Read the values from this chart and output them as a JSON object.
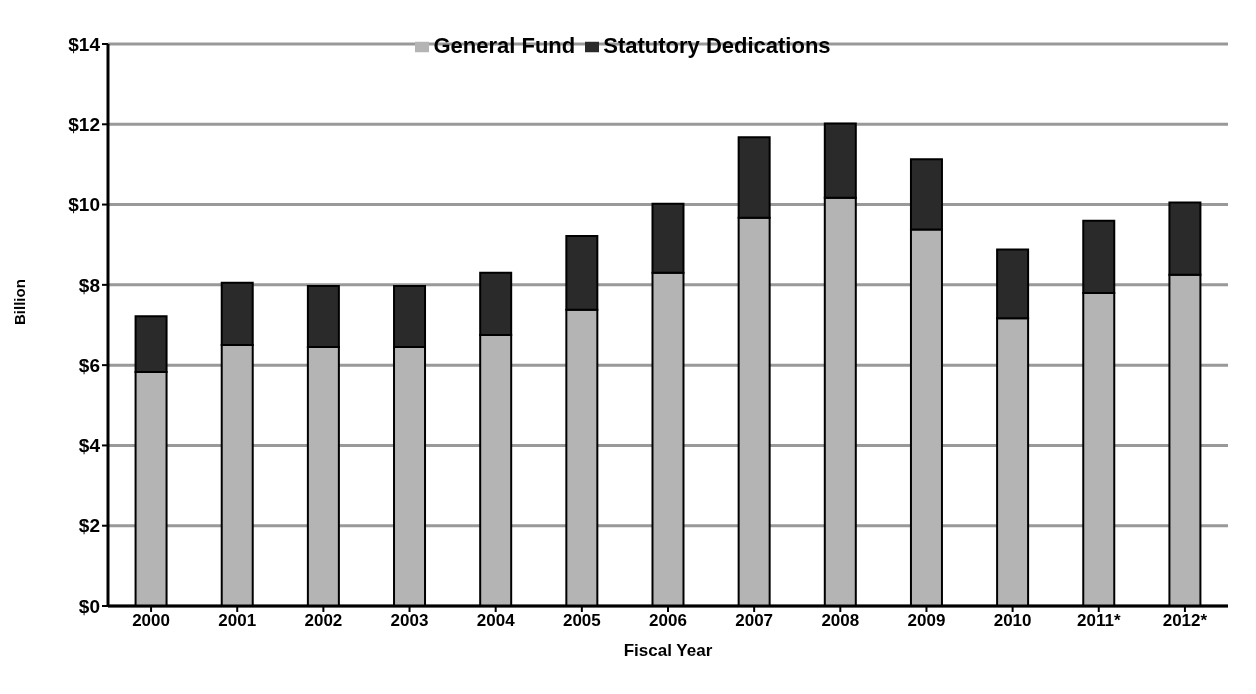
{
  "chart_data": {
    "type": "bar",
    "stacked": true,
    "xlabel": "Fiscal Year",
    "ylabel": "Billion",
    "categories": [
      "2000",
      "2001",
      "2002",
      "2003",
      "2004",
      "2005",
      "2006",
      "2007",
      "2008",
      "2009",
      "2010",
      "2011*",
      "2012*"
    ],
    "series": [
      {
        "name": "General Fund",
        "color": "#b4b4b4",
        "values": [
          5.83,
          6.5,
          6.45,
          6.45,
          6.75,
          7.38,
          8.3,
          9.67,
          10.17,
          9.38,
          7.17,
          7.8,
          8.25
        ]
      },
      {
        "name": "Statutory Dedications",
        "color": "#2a2a2a",
        "values": [
          1.39,
          1.55,
          1.52,
          1.52,
          1.55,
          1.84,
          1.72,
          2.01,
          1.85,
          1.75,
          1.71,
          1.8,
          1.8
        ]
      }
    ],
    "ylim": [
      0,
      14
    ],
    "yticks": [
      {
        "value": 0,
        "label": "$0"
      },
      {
        "value": 2,
        "label": "$2"
      },
      {
        "value": 4,
        "label": "$4"
      },
      {
        "value": 6,
        "label": "$6"
      },
      {
        "value": 8,
        "label": "$8"
      },
      {
        "value": 10,
        "label": "$10"
      },
      {
        "value": 12,
        "label": "$12"
      },
      {
        "value": 14,
        "label": "$14"
      }
    ],
    "grid": "y",
    "legend": "top"
  }
}
